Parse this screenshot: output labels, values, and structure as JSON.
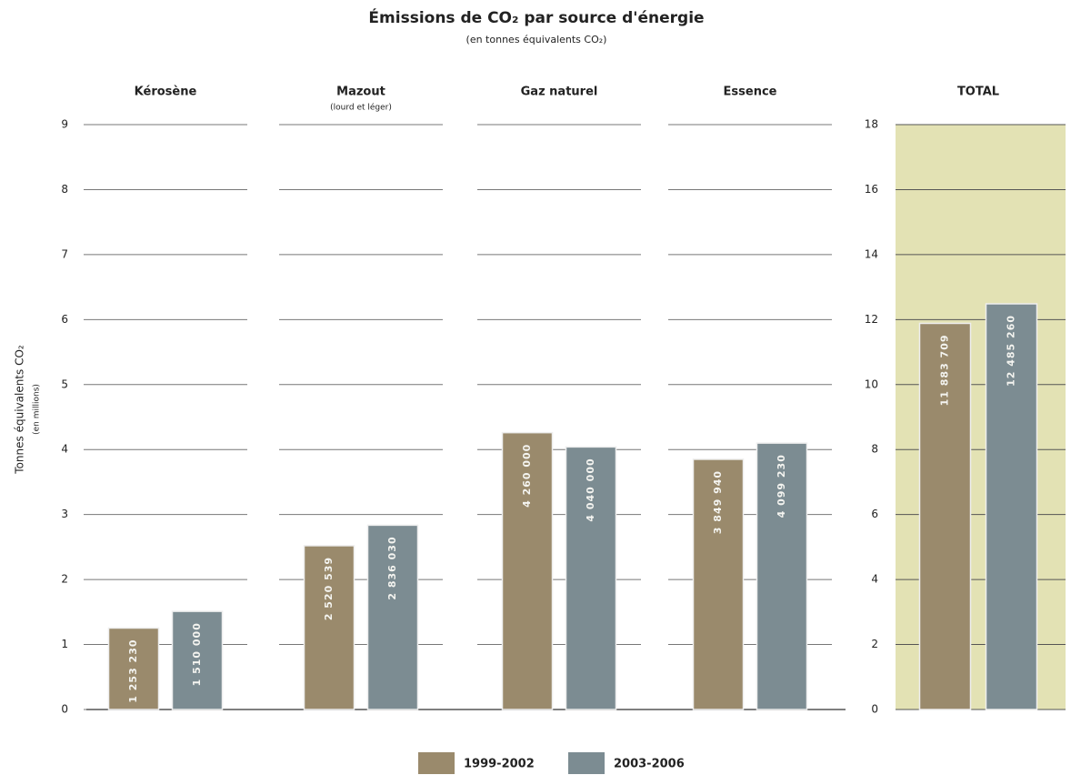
{
  "chart_data": [
    {
      "type": "bar",
      "title": "Émissions de CO₂ par source d'énergie",
      "subtitle": "(en tonnes équivalents CO₂)",
      "y_label": "Tonnes équivalents CO₂",
      "y_label_note": "(en millions)",
      "categories": [
        "Kérosène",
        "Mazout",
        "Gaz naturel",
        "Essence"
      ],
      "category_notes": [
        null,
        "(lourd et léger)",
        null,
        null
      ],
      "series": [
        {
          "name": "1999-2002",
          "color": "#9a8a6c",
          "values": [
            1.25323,
            2.520539,
            4.26,
            3.84994
          ],
          "value_labels": [
            "1 253 230",
            "2 520 539",
            "4 260 000",
            "3 849 940"
          ]
        },
        {
          "name": "2003-2006",
          "color": "#7c8c92",
          "values": [
            1.51,
            2.83603,
            4.04,
            4.09923
          ],
          "value_labels": [
            "1 510 000",
            "2 836 030",
            "4 040 000",
            "4 099 230"
          ]
        }
      ],
      "ylim": [
        0,
        9
      ],
      "yticks": [
        0,
        1,
        2,
        3,
        4,
        5,
        6,
        7,
        8,
        9
      ],
      "grid": true,
      "legend": "bottom"
    },
    {
      "type": "bar",
      "categories": [
        "TOTAL"
      ],
      "series": [
        {
          "color": "#9a8a6c",
          "values": [
            11.883709
          ],
          "value_labels": [
            "11 883 709"
          ]
        },
        {
          "color": "#7c8c92",
          "values": [
            12.48526
          ],
          "value_labels": [
            "12 485 260"
          ]
        }
      ],
      "ylim": [
        0,
        18
      ],
      "yticks": [
        0,
        2,
        4,
        6,
        8,
        10,
        12,
        14,
        16,
        18
      ],
      "grid": true,
      "background": "#e3e2b4"
    }
  ]
}
